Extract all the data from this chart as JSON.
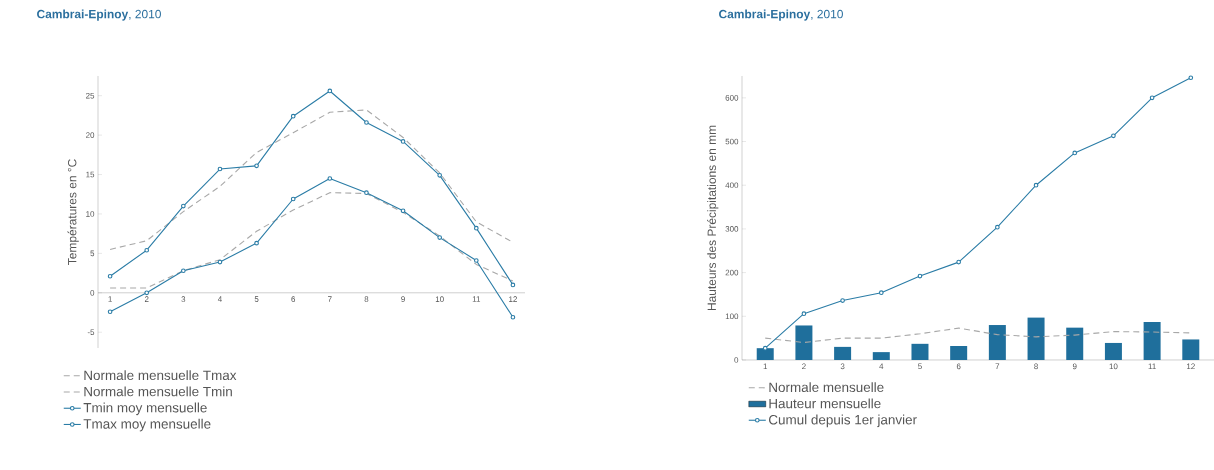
{
  "chart_data": [
    {
      "type": "line",
      "title": "**Cambrai-Epinoy**, 2010",
      "ylabel": "Températures en °C",
      "categories": [
        "1",
        "2",
        "3",
        "4",
        "5",
        "6",
        "7",
        "8",
        "9",
        "10",
        "11",
        "12"
      ],
      "ylim": [
        -7,
        27.5
      ],
      "yticks": [
        -5,
        0,
        5,
        10,
        15,
        20,
        25
      ],
      "grid": false,
      "legend": "bottom",
      "series": [
        {
          "name": "Normale mensuelle Tmax",
          "color": "#a8a8a8",
          "line_style": "dashed",
          "marker": "none",
          "values": [
            5.5,
            6.6,
            10.3,
            13.5,
            17.8,
            20.3,
            22.9,
            23.2,
            19.7,
            15.2,
            9.0,
            6.4
          ]
        },
        {
          "name": "Normale mensuelle Tmin",
          "color": "#a8a8a8",
          "line_style": "dashed",
          "marker": "none",
          "values": [
            0.6,
            0.6,
            2.8,
            4.2,
            7.8,
            10.5,
            12.7,
            12.6,
            10.2,
            7.2,
            3.6,
            1.5
          ]
        },
        {
          "name": "Tmin moy mensuelle",
          "color": "#2a7ca6",
          "line_style": "solid",
          "marker": "circle",
          "values": [
            -2.4,
            0,
            2.8,
            3.9,
            6.3,
            11.9,
            14.5,
            12.7,
            10.4,
            7.0,
            4.1,
            -3.1
          ]
        },
        {
          "name": "Tmax moy mensuelle",
          "color": "#2a7ca6",
          "line_style": "solid",
          "marker": "circle",
          "values": [
            2.1,
            5.4,
            11.0,
            15.7,
            16.1,
            22.4,
            25.6,
            21.6,
            19.2,
            14.9,
            8.2,
            1.0
          ]
        }
      ]
    },
    {
      "type": "bar",
      "title": "**Cambrai-Epinoy**, 2010",
      "ylabel": "Hauteurs des Précipitations en mm",
      "categories": [
        "1",
        "2",
        "3",
        "4",
        "5",
        "6",
        "7",
        "8",
        "9",
        "10",
        "11",
        "12"
      ],
      "ylim": [
        0,
        650
      ],
      "yticks": [
        0,
        100,
        200,
        300,
        400,
        500,
        600
      ],
      "grid": false,
      "legend": "bottom",
      "series": [
        {
          "name": "Normale mensuelle",
          "type": "line",
          "color": "#a8a8a8",
          "line_style": "dashed",
          "marker": "none",
          "values": [
            50,
            40,
            50,
            50,
            60,
            73,
            58,
            53,
            57,
            65,
            64,
            62
          ]
        },
        {
          "name": "Hauteur mensuelle",
          "type": "bar",
          "color": "#1f6f9c",
          "values": [
            27,
            79,
            30,
            18,
            37,
            32,
            80,
            97,
            74,
            39,
            87,
            47
          ]
        },
        {
          "name": "Cumul depuis 1er janvier",
          "type": "line",
          "color": "#2a7ca6",
          "line_style": "solid",
          "marker": "circle",
          "values": [
            27,
            106,
            136,
            154,
            192,
            224,
            304,
            400,
            474,
            513,
            600,
            646
          ]
        }
      ]
    }
  ]
}
